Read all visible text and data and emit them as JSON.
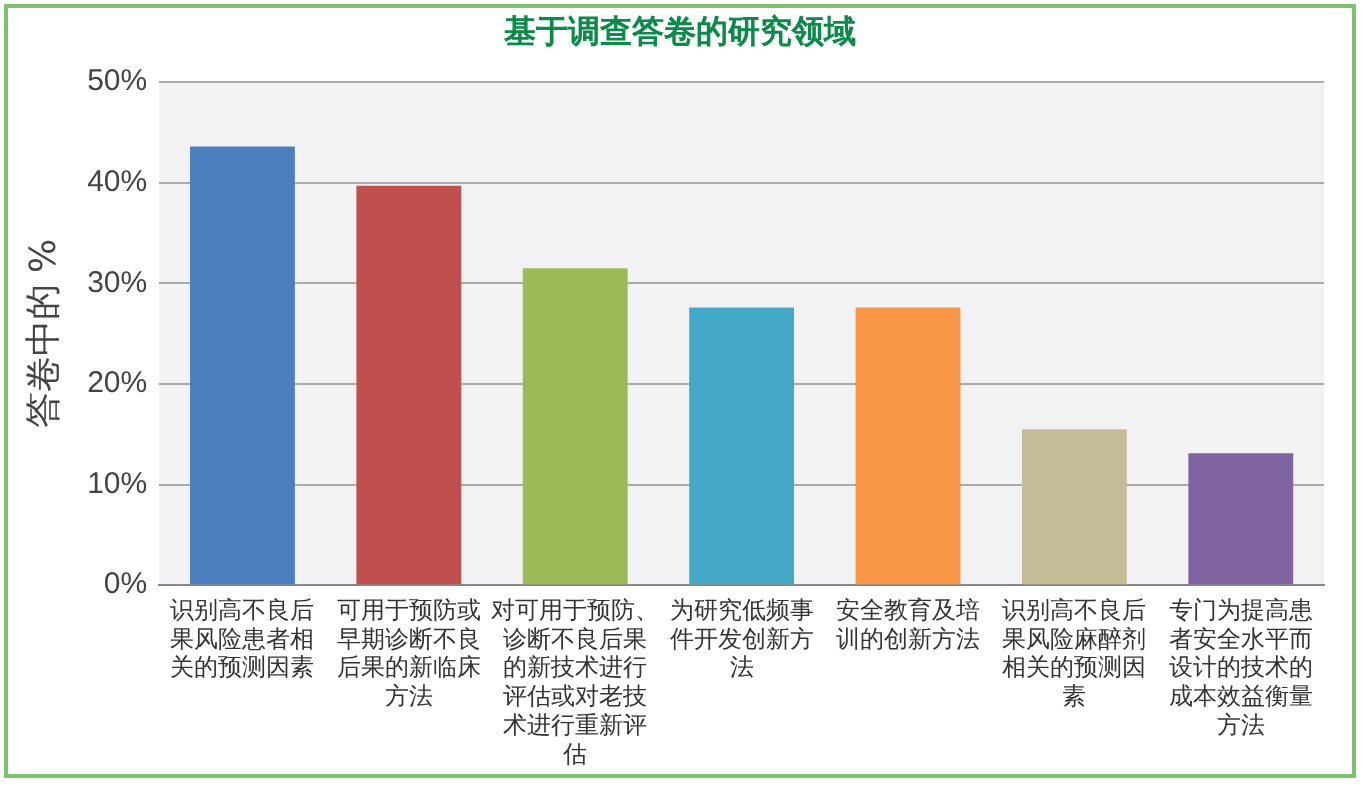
{
  "chart_data": {
    "type": "bar",
    "title": "基于调查答卷的研究领域",
    "ylabel": "答卷中的 %",
    "categories": [
      "识别高不良后果风险患者相关的预测因素",
      "可用于预防或早期诊断不良后果的新临床方法",
      "对可用于预防、诊断不良后果的新技术进行评估或对老技术进行重新评估",
      "为研究低频事件开发创新方法",
      "安全教育及培训的创新方法",
      "识别高不良后果风险麻醉剂相关的预测因素",
      "专门为提高患者安全水平而设计的技术的成本效益衡量方法"
    ],
    "values": [
      43.6,
      39.7,
      31.5,
      27.6,
      27.6,
      15.5,
      13.1
    ],
    "colors": [
      "#4a7ebf",
      "#c0504d",
      "#9bbb59",
      "#43a9c6",
      "#f79646",
      "#c4bd97",
      "#8064a2"
    ],
    "ylim": [
      0,
      50
    ],
    "yticks": [
      {
        "value": 0,
        "label": "0%"
      },
      {
        "value": 10,
        "label": "10%"
      },
      {
        "value": 20,
        "label": "20%"
      },
      {
        "value": 30,
        "label": "30%"
      },
      {
        "value": 40,
        "label": "40%"
      },
      {
        "value": 50,
        "label": "50%"
      }
    ],
    "grid": "y",
    "legend": false
  }
}
